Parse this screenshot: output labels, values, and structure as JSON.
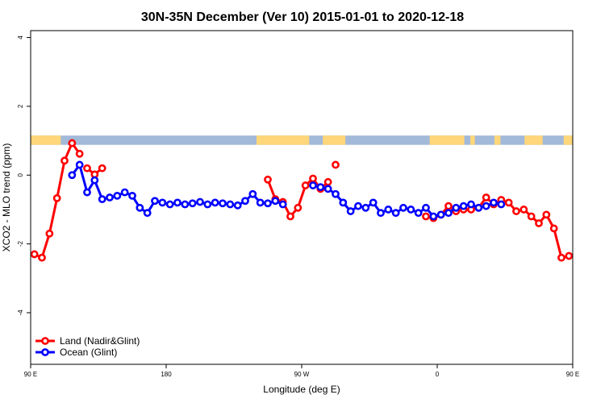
{
  "chart_data": {
    "type": "line",
    "title": "30N-35N December (Ver 10)   2015-01-01 to 2020-12-18",
    "xlabel": "Longitude (deg E)",
    "ylabel": "XCO2 - MLO trend (ppm)",
    "xlim": [
      90,
      450
    ],
    "ylim": [
      -5.5,
      4.2
    ],
    "x_ticks": [
      {
        "value": 90,
        "label": "90 E"
      },
      {
        "value": 180,
        "label": "180"
      },
      {
        "value": 270,
        "label": "90 W"
      },
      {
        "value": 360,
        "label": "0"
      },
      {
        "value": 450,
        "label": "90 E"
      }
    ],
    "y_ticks": [
      {
        "value": 4,
        "label": "4"
      },
      {
        "value": 2,
        "label": "2"
      },
      {
        "value": 0,
        "label": "0"
      },
      {
        "value": -2,
        "label": "-2"
      },
      {
        "value": -4,
        "label": "-4"
      }
    ],
    "legend_position": "bottom-left",
    "land_mask_colors": {
      "land": "#ffd77a",
      "ocean": "#a3b9d9"
    },
    "land_segments": [
      [
        90,
        110
      ],
      [
        240,
        275
      ],
      [
        284,
        299
      ],
      [
        355,
        378
      ],
      [
        382,
        385
      ],
      [
        398,
        402
      ],
      [
        418,
        430
      ],
      [
        444,
        450
      ]
    ],
    "series": [
      {
        "name": "Land (Nadir&Glint)",
        "color": "#ff0000",
        "segments": [
          {
            "x": [
              92.5,
              97.5,
              102.5,
              107.5,
              112.5,
              117.5,
              122.5
            ],
            "y": [
              -2.3,
              -2.4,
              -1.7,
              -0.67,
              0.42,
              0.93,
              0.62
            ]
          },
          {
            "x": [
              127.5,
              132.5,
              137.5
            ],
            "y": [
              0.2,
              0.02,
              0.2
            ]
          },
          {
            "x": [
              247.5,
              252.5,
              257.5,
              262.5,
              267.5,
              272.5,
              277.5,
              282.5,
              287.5
            ],
            "y": [
              -0.13,
              -0.7,
              -0.78,
              -1.2,
              -0.95,
              -0.3,
              -0.1,
              -0.4,
              -0.2
            ]
          },
          {
            "x": [
              292.5
            ],
            "y": [
              0.3
            ]
          },
          {
            "x": [
              352.5,
              357.5,
              362.5,
              367.5,
              372.5,
              377.5,
              382.5,
              387.5,
              392.5,
              397.5,
              402.5,
              407.5,
              412.5,
              417.5,
              422.5,
              427.5,
              432.5,
              437.5,
              442.5,
              447.5
            ],
            "y": [
              -1.2,
              -1.25,
              -1.15,
              -0.9,
              -1.05,
              -1.0,
              -1.0,
              -0.95,
              -0.65,
              -0.85,
              -0.72,
              -0.8,
              -1.05,
              -1.0,
              -1.2,
              -1.4,
              -1.15,
              -1.55,
              -2.4,
              -2.35
            ]
          },
          {
            "x": [
              452.5,
              457.5,
              462.5,
              467.5,
              472.5,
              477.5,
              482.5
            ],
            "y": [
              -2.3,
              -2.4,
              -1.7,
              -0.67,
              0.42,
              0.93,
              0.62
            ]
          },
          {
            "x": [
              487.5,
              492.5,
              497.5
            ],
            "y": [
              0.2,
              0.02,
              0.2
            ]
          }
        ]
      },
      {
        "name": "Ocean (Glint)",
        "color": "#0000ff",
        "segments": [
          {
            "x": [
              117.5,
              122.5,
              127.5,
              132.5,
              137.5,
              142.5,
              147.5,
              152.5,
              157.5,
              162.5,
              167.5,
              172.5,
              177.5,
              182.5,
              187.5,
              192.5,
              197.5,
              202.5,
              207.5,
              212.5,
              217.5,
              222.5,
              227.5,
              232.5,
              237.5,
              242.5,
              247.5,
              252.5,
              257.5
            ],
            "y": [
              0.0,
              0.3,
              -0.5,
              -0.15,
              -0.7,
              -0.65,
              -0.6,
              -0.5,
              -0.6,
              -0.95,
              -1.1,
              -0.75,
              -0.8,
              -0.85,
              -0.8,
              -0.85,
              -0.82,
              -0.78,
              -0.85,
              -0.8,
              -0.82,
              -0.85,
              -0.88,
              -0.75,
              -0.55,
              -0.8,
              -0.82,
              -0.75,
              -0.85
            ]
          },
          {
            "x": [
              277.5,
              282.5,
              287.5,
              292.5,
              297.5,
              302.5,
              307.5,
              312.5,
              317.5,
              322.5,
              327.5,
              332.5,
              337.5,
              342.5,
              347.5,
              352.5,
              357.5,
              362.5,
              367.5,
              372.5,
              377.5,
              382.5,
              387.5,
              392.5,
              397.5,
              402.5
            ],
            "y": [
              -0.3,
              -0.35,
              -0.4,
              -0.55,
              -0.8,
              -1.05,
              -0.9,
              -0.95,
              -0.8,
              -1.1,
              -1.0,
              -1.1,
              -0.95,
              -1.0,
              -1.1,
              -0.95,
              -1.2,
              -1.15,
              -1.1,
              -0.95,
              -0.9,
              -0.85,
              -0.95,
              -0.9,
              -0.8,
              -0.85
            ]
          },
          {
            "x": [
              477.5,
              482.5,
              487.5,
              492.5,
              497.5,
              502.5,
              507.5,
              512.5,
              517.5,
              522.5,
              527.5,
              532.5,
              537.5,
              542.5,
              547.5,
              552.5,
              557.5,
              562.5,
              567.5,
              572.5,
              577.5,
              582.5,
              587.5,
              592.5,
              597.5
            ],
            "y": [
              0.0,
              0.3,
              -0.5,
              -0.15,
              -0.7,
              -0.65,
              -0.6,
              -0.5,
              -0.6,
              -0.95,
              -1.1,
              -0.75,
              -0.8,
              -0.85,
              -0.8,
              -0.85,
              -0.82,
              -0.78,
              -0.85,
              -0.8,
              -0.82,
              -0.85,
              -0.88,
              -0.75,
              -0.55
            ]
          }
        ]
      }
    ]
  }
}
